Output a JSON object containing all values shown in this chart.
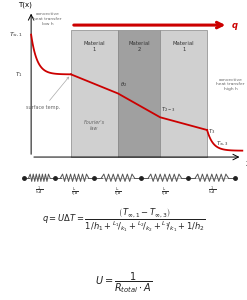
{
  "mat1_color": "#d0d0d0",
  "mat2_color": "#a0a0a0",
  "arrow_color": "#cc0000",
  "resistor_color": "#555555",
  "dot_color": "#222222",
  "text_color": "#333333",
  "annot_color": "#666666",
  "resistor_labels": [
    "$\\frac{1}{h_1A}$",
    "$\\frac{L_1}{k_1A}$",
    "$\\frac{L_2}{k_2A}$",
    "$\\frac{L_1}{k_1A}$",
    "$\\frac{1}{h_2A}$"
  ],
  "mat_labels": [
    "Material\n1",
    "Material\n2",
    "Material\n1"
  ],
  "formula1": "$q = U\\Delta T = \\dfrac{\\left(T_{\\infty,1} - T_{\\infty,3}\\right)}{1/h_1 + L_1/k_1 + L_2/k_2 + L_1/k_1 + 1/h_2}$",
  "formula2": "$U = \\dfrac{1}{R_{total}\\cdot A}$"
}
